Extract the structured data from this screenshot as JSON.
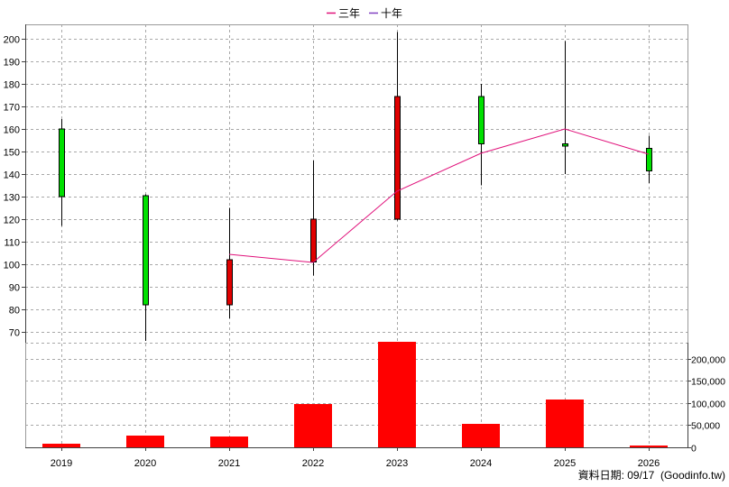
{
  "footer": {
    "text": "資料日期: 09/17  (Goodinfo.tw)"
  },
  "chart_data": [
    {
      "type": "candlestick",
      "categories": [
        "2019",
        "2020",
        "2021",
        "2022",
        "2023",
        "2024",
        "2025",
        "2026"
      ],
      "ohlc": [
        {
          "open": 160,
          "high": 164.5,
          "low": 117,
          "close": 130
        },
        {
          "open": 130.5,
          "high": 131,
          "low": 66,
          "close": 82
        },
        {
          "open": 82,
          "high": 125,
          "low": 76,
          "close": 102
        },
        {
          "open": 101,
          "high": 146,
          "low": 95,
          "close": 120
        },
        {
          "open": 120,
          "high": 203,
          "low": 119.5,
          "close": 174.5
        },
        {
          "open": 174.5,
          "high": 180,
          "low": 135,
          "close": 153.5
        },
        {
          "open": 153.5,
          "high": 199,
          "low": 140,
          "close": 152.5
        },
        {
          "open": 151.5,
          "high": 157,
          "low": 136,
          "close": 141.5
        }
      ],
      "series": [
        {
          "name": "三年",
          "type": "line",
          "color": "#e0107a",
          "values": [
            null,
            null,
            104.4,
            100.8,
            132.4,
            149.2,
            160,
            148.8
          ]
        },
        {
          "name": "十年",
          "type": "line",
          "color": "#8040c0",
          "values": [
            null,
            null,
            null,
            null,
            null,
            null,
            null,
            null
          ]
        }
      ],
      "yticks": [
        70,
        80,
        90,
        100,
        110,
        120,
        130,
        140,
        150,
        160,
        170,
        180,
        190,
        200
      ],
      "ylim": [
        65.2,
        206.4
      ],
      "up_color": "#e00000",
      "down_color": "#00e000",
      "grid": true,
      "legend": "top-center"
    },
    {
      "type": "bar",
      "categories": [
        "2019",
        "2020",
        "2021",
        "2022",
        "2023",
        "2024",
        "2025",
        "2026"
      ],
      "values": [
        8000,
        26500,
        24500,
        98000,
        239000,
        53000,
        108000,
        4000
      ],
      "yticks": [
        0,
        50000,
        100000,
        150000,
        200000
      ],
      "ytick_labels": [
        "0",
        "50,000",
        "100,000",
        "150,000",
        "200,000"
      ],
      "ylim": [
        0,
        236700
      ],
      "color": "#ff0000",
      "grid": true
    }
  ]
}
